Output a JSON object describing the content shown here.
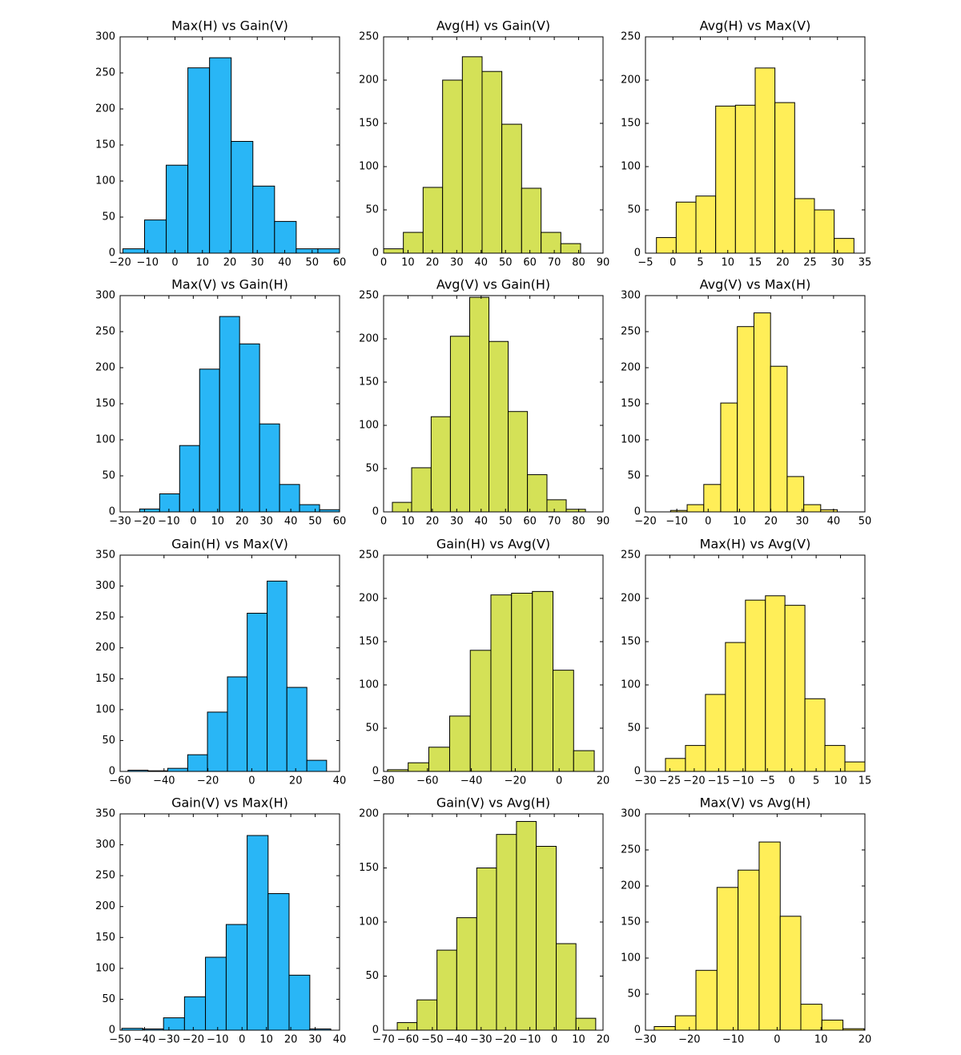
{
  "chart_data": [
    {
      "type": "histogram",
      "title": "Max(H) vs Gain(V)",
      "color": "#29b6f6",
      "bins": [
        -19,
        -11.1,
        -3.2,
        4.7,
        12.6,
        20.5,
        28.4,
        36.3,
        44.2,
        52.1,
        60
      ],
      "values": [
        6,
        46,
        122,
        257,
        271,
        155,
        93,
        44,
        6,
        6
      ],
      "xlim": [
        -20,
        60
      ],
      "ylim": [
        0,
        300
      ],
      "xticks": [
        {
          "value": -20,
          "label": "−20"
        },
        {
          "value": -10,
          "label": "−10"
        },
        0,
        10,
        20,
        30,
        40,
        50,
        60
      ],
      "yticks": [
        0,
        50,
        100,
        150,
        200,
        250,
        300
      ]
    },
    {
      "type": "histogram",
      "title": "Avg(H) vs Gain(V)",
      "color": "#d4e157",
      "bins": [
        0,
        8.1,
        16.2,
        24.2,
        32.3,
        40.4,
        48.5,
        56.6,
        64.6,
        72.7,
        80.8
      ],
      "values": [
        5,
        24,
        76,
        200,
        227,
        210,
        149,
        75,
        24,
        11
      ],
      "xlim": [
        0,
        90
      ],
      "ylim": [
        0,
        250
      ],
      "xticks": [
        0,
        10,
        20,
        30,
        40,
        50,
        60,
        70,
        80,
        90
      ],
      "yticks": [
        0,
        50,
        100,
        150,
        200,
        250
      ]
    },
    {
      "type": "histogram",
      "title": "Avg(H) vs Max(V)",
      "color": "#ffee58",
      "bins": [
        -3,
        0.6,
        4.2,
        7.8,
        11.4,
        15,
        18.6,
        22.2,
        25.8,
        29.4,
        33
      ],
      "values": [
        18,
        59,
        66,
        170,
        171,
        214,
        174,
        63,
        50,
        17
      ],
      "xlim": [
        -5,
        35
      ],
      "ylim": [
        0,
        250
      ],
      "xticks": [
        {
          "value": -5,
          "label": "−5"
        },
        0,
        5,
        10,
        15,
        20,
        25,
        30,
        35
      ],
      "yticks": [
        0,
        50,
        100,
        150,
        200,
        250
      ]
    },
    {
      "type": "histogram",
      "title": "Max(V) vs Gain(H)",
      "color": "#29b6f6",
      "bins": [
        -22,
        -13.8,
        -5.6,
        2.6,
        10.8,
        19,
        27.2,
        35.4,
        43.6,
        51.8,
        60
      ],
      "values": [
        4,
        25,
        92,
        198,
        271,
        233,
        122,
        38,
        10,
        3
      ],
      "xlim": [
        -30,
        60
      ],
      "ylim": [
        0,
        300
      ],
      "xticks": [
        {
          "value": -30,
          "label": "−30"
        },
        {
          "value": -20,
          "label": "−20"
        },
        {
          "value": -10,
          "label": "−10"
        },
        0,
        10,
        20,
        30,
        40,
        50,
        60
      ],
      "yticks": [
        0,
        50,
        100,
        150,
        200,
        250,
        300
      ]
    },
    {
      "type": "histogram",
      "title": "Avg(V) vs Gain(H)",
      "color": "#d4e157",
      "bins": [
        3.6,
        11.5,
        19.5,
        27.4,
        35.3,
        43.2,
        51.1,
        59,
        67,
        74.9,
        82.8
      ],
      "values": [
        11,
        51,
        110,
        203,
        248,
        197,
        116,
        43,
        14,
        3
      ],
      "xlim": [
        0,
        90
      ],
      "ylim": [
        0,
        250
      ],
      "xticks": [
        0,
        10,
        20,
        30,
        40,
        50,
        60,
        70,
        80,
        90
      ],
      "yticks": [
        0,
        50,
        100,
        150,
        200,
        250
      ]
    },
    {
      "type": "histogram",
      "title": "Avg(V) vs Max(H)",
      "color": "#ffee58",
      "bins": [
        -12,
        -6.7,
        -1.4,
        4,
        9.3,
        14.6,
        19.9,
        25.2,
        30.5,
        35.9,
        41.2
      ],
      "values": [
        2,
        10,
        38,
        151,
        257,
        276,
        202,
        49,
        10,
        3
      ],
      "xlim": [
        -20,
        50
      ],
      "ylim": [
        0,
        300
      ],
      "xticks": [
        {
          "value": -20,
          "label": "−20"
        },
        {
          "value": -10,
          "label": "−10"
        },
        0,
        10,
        20,
        30,
        40,
        50
      ],
      "yticks": [
        0,
        50,
        100,
        150,
        200,
        250,
        300
      ]
    },
    {
      "type": "histogram",
      "title": "Gain(H) vs Max(V)",
      "color": "#29b6f6",
      "bins": [
        -56.4,
        -47.3,
        -38.3,
        -29.2,
        -20.2,
        -11.1,
        -2.1,
        7,
        16,
        25.1,
        34.1
      ],
      "values": [
        2,
        1,
        5,
        27,
        96,
        153,
        256,
        308,
        136,
        18
      ],
      "xlim": [
        -60,
        40
      ],
      "ylim": [
        0,
        350
      ],
      "xticks": [
        {
          "value": -60,
          "label": "−60"
        },
        {
          "value": -40,
          "label": "−40"
        },
        {
          "value": -20,
          "label": "−20"
        },
        0,
        20,
        40
      ],
      "yticks": [
        0,
        50,
        100,
        150,
        200,
        250,
        300,
        350
      ]
    },
    {
      "type": "histogram",
      "title": "Gain(H) vs Avg(V)",
      "color": "#d4e157",
      "bins": [
        -78.2,
        -68.8,
        -59.4,
        -49.9,
        -40.5,
        -31.1,
        -21.7,
        -12.2,
        -2.8,
        6.6,
        16
      ],
      "values": [
        2,
        10,
        28,
        64,
        140,
        204,
        206,
        208,
        117,
        24
      ],
      "xlim": [
        -80,
        20
      ],
      "ylim": [
        0,
        250
      ],
      "xticks": [
        {
          "value": -80,
          "label": "−80"
        },
        {
          "value": -60,
          "label": "−60"
        },
        {
          "value": -40,
          "label": "−40"
        },
        {
          "value": -20,
          "label": "−20"
        },
        0,
        20
      ],
      "yticks": [
        0,
        50,
        100,
        150,
        200,
        250
      ]
    },
    {
      "type": "histogram",
      "title": "Max(H) vs Avg(V)",
      "color": "#ffee58",
      "bins": [
        -25.9,
        -21.8,
        -17.7,
        -13.6,
        -9.5,
        -5.4,
        -1.4,
        2.7,
        6.8,
        10.9,
        15
      ],
      "values": [
        15,
        30,
        89,
        149,
        198,
        203,
        192,
        84,
        30,
        11
      ],
      "xlim": [
        -30,
        15
      ],
      "ylim": [
        0,
        250
      ],
      "xticks": [
        {
          "value": -30,
          "label": "−30"
        },
        {
          "value": -25,
          "label": "−25"
        },
        {
          "value": -20,
          "label": "−20"
        },
        {
          "value": -15,
          "label": "−15"
        },
        {
          "value": -10,
          "label": "−10"
        },
        {
          "value": -5,
          "label": "−5"
        },
        0,
        5,
        10,
        15
      ],
      "yticks": [
        0,
        50,
        100,
        150,
        200,
        250
      ]
    },
    {
      "type": "histogram",
      "title": "Gain(V) vs Max(H)",
      "color": "#29b6f6",
      "bins": [
        -49.3,
        -40.7,
        -32.2,
        -23.6,
        -15,
        -6.5,
        2.1,
        10.7,
        19.3,
        27.8,
        36.4
      ],
      "values": [
        3,
        2,
        20,
        54,
        118,
        171,
        315,
        221,
        89,
        2
      ],
      "xlim": [
        -50,
        40
      ],
      "ylim": [
        0,
        350
      ],
      "xticks": [
        {
          "value": -50,
          "label": "−50"
        },
        {
          "value": -40,
          "label": "−40"
        },
        {
          "value": -30,
          "label": "−30"
        },
        {
          "value": -20,
          "label": "−20"
        },
        {
          "value": -10,
          "label": "−10"
        },
        0,
        10,
        20,
        30,
        40
      ],
      "yticks": [
        0,
        50,
        100,
        150,
        200,
        250,
        300,
        350
      ]
    },
    {
      "type": "histogram",
      "title": "Gain(V) vs Avg(H)",
      "color": "#d4e157",
      "bins": [
        -64.4,
        -56.3,
        -48.1,
        -40,
        -31.8,
        -23.7,
        -15.5,
        -7.4,
        0.8,
        8.9,
        17
      ],
      "values": [
        7,
        28,
        74,
        104,
        150,
        181,
        193,
        170,
        80,
        11
      ],
      "xlim": [
        -70,
        20
      ],
      "ylim": [
        0,
        200
      ],
      "xticks": [
        {
          "value": -70,
          "label": "−70"
        },
        {
          "value": -60,
          "label": "−60"
        },
        {
          "value": -50,
          "label": "−50"
        },
        {
          "value": -40,
          "label": "−40"
        },
        {
          "value": -30,
          "label": "−30"
        },
        {
          "value": -20,
          "label": "−20"
        },
        {
          "value": -10,
          "label": "−10"
        },
        0,
        10,
        20
      ],
      "yticks": [
        0,
        50,
        100,
        150,
        200
      ]
    },
    {
      "type": "histogram",
      "title": "Max(V) vs Avg(H)",
      "color": "#ffee58",
      "bins": [
        -28,
        -23.2,
        -18.5,
        -13.7,
        -8.9,
        -4.1,
        0.7,
        5.4,
        10.2,
        15,
        19.8
      ],
      "values": [
        5,
        20,
        83,
        198,
        222,
        261,
        158,
        36,
        14,
        2
      ],
      "xlim": [
        -30,
        20
      ],
      "ylim": [
        0,
        300
      ],
      "xticks": [
        {
          "value": -30,
          "label": "−30"
        },
        {
          "value": -20,
          "label": "−20"
        },
        {
          "value": -10,
          "label": "−10"
        },
        0,
        10,
        20
      ],
      "yticks": [
        0,
        50,
        100,
        150,
        200,
        250,
        300
      ]
    }
  ]
}
